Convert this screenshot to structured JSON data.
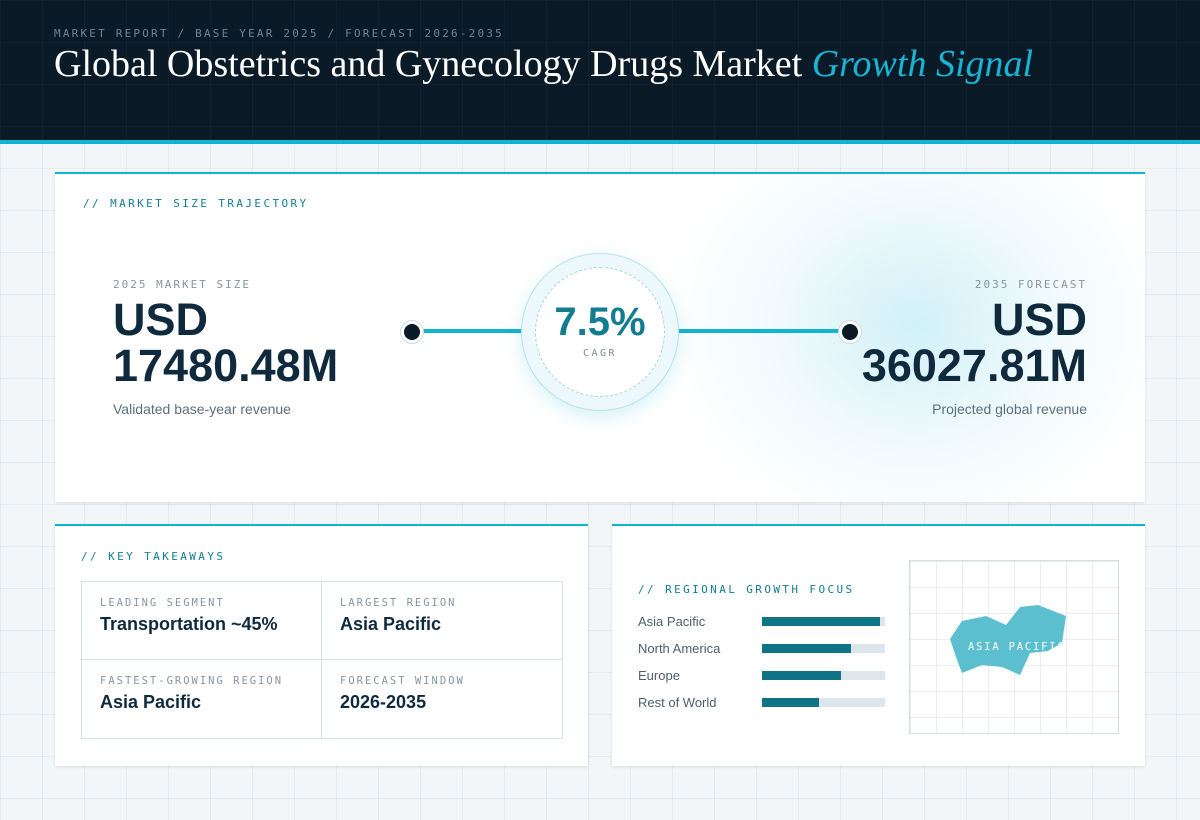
{
  "header": {
    "breadcrumb": "MARKET REPORT / BASE YEAR 2025 / FORECAST 2026-2035",
    "title": "Global Obstetrics and Gynecology Drugs Market",
    "title_accent": "Growth Signal"
  },
  "trajectory": {
    "section_label": "// MARKET SIZE TRAJECTORY",
    "base": {
      "caption": "2025 MARKET SIZE",
      "currency": "USD",
      "amount": "17480.48M",
      "sub": "Validated base-year revenue"
    },
    "forecast": {
      "caption": "2035 FORECAST",
      "currency": "USD",
      "amount": "36027.81M",
      "sub": "Projected global revenue"
    },
    "cagr": {
      "value": "7.5%",
      "label": "CAGR"
    }
  },
  "takeaways": {
    "section_label": "// KEY TAKEAWAYS",
    "items": [
      {
        "label": "LEADING SEGMENT",
        "value": "Transportation ~45%"
      },
      {
        "label": "LARGEST REGION",
        "value": "Asia Pacific"
      },
      {
        "label": "FASTEST-GROWING REGION",
        "value": "Asia Pacific"
      },
      {
        "label": "FORECAST WINDOW",
        "value": "2026-2035"
      }
    ]
  },
  "regional": {
    "section_label": "// REGIONAL GROWTH FOCUS",
    "bars": [
      {
        "label": "Asia Pacific",
        "level": 0.96
      },
      {
        "label": "North America",
        "level": 0.72
      },
      {
        "label": "Europe",
        "level": 0.64
      },
      {
        "label": "Rest of World",
        "level": 0.46
      }
    ],
    "map_label": "ASIA PACIFIC",
    "map_color": "#5bbfd0"
  },
  "colors": {
    "accent": "#12b5cf",
    "header_bg": "#0b1a27",
    "bar_fill": "#0f7486"
  }
}
